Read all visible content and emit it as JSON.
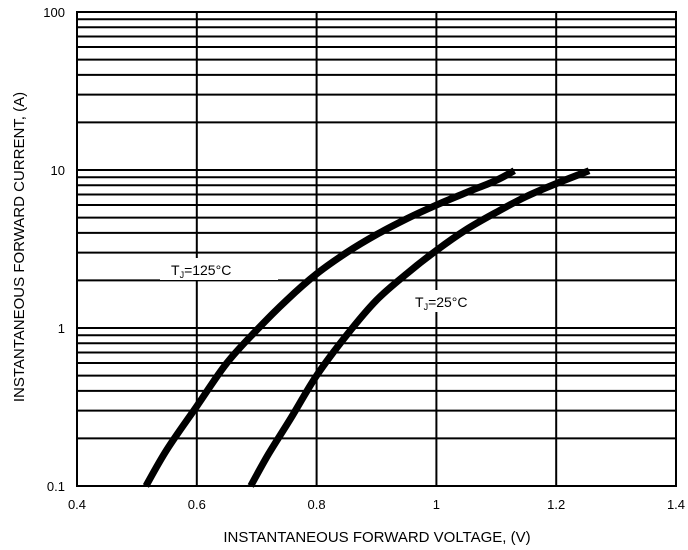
{
  "chart_data": {
    "type": "line",
    "title": "",
    "xlabel": "INSTANTANEOUS FORWARD VOLTAGE, (V)",
    "ylabel": "INSTANTANEOUS FORWARD CURRENT, (A)",
    "xlim": [
      0.4,
      1.4
    ],
    "ylim": [
      0.1,
      100
    ],
    "yscale": "log",
    "grid": true,
    "x_ticks": [
      "0.4",
      "0.6",
      "0.8",
      "1",
      "1.2",
      "1.4"
    ],
    "y_ticks": [
      "0.1",
      "1",
      "10",
      "100"
    ],
    "series": [
      {
        "label_main": "T",
        "label_sub": "J",
        "label_rest": "=125°C",
        "color": "#000000",
        "x": [
          0.515,
          0.55,
          0.6,
          0.65,
          0.7,
          0.75,
          0.8,
          0.85,
          0.9,
          0.95,
          1.0,
          1.05,
          1.1,
          1.13
        ],
        "y": [
          0.1,
          0.17,
          0.32,
          0.6,
          0.97,
          1.5,
          2.2,
          3.0,
          3.9,
          4.9,
          6.0,
          7.2,
          8.6,
          9.9
        ]
      },
      {
        "label_main": "T",
        "label_sub": "J",
        "label_rest": "=25°C",
        "color": "#000000",
        "x": [
          0.69,
          0.72,
          0.76,
          0.8,
          0.85,
          0.9,
          0.95,
          1.0,
          1.05,
          1.1,
          1.15,
          1.2,
          1.255
        ],
        "y": [
          0.1,
          0.16,
          0.28,
          0.5,
          0.9,
          1.5,
          2.2,
          3.1,
          4.2,
          5.4,
          6.8,
          8.2,
          9.9
        ]
      }
    ]
  }
}
